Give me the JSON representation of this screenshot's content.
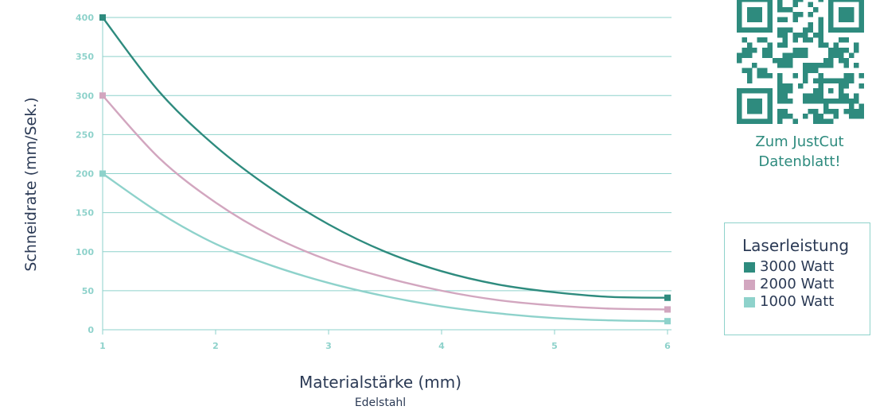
{
  "qr": {
    "caption_line1": "Zum JustCut",
    "caption_line2": "Datenblatt!",
    "caption_color": "#2e8b7e",
    "code_color": "#2e8b7e"
  },
  "legend": {
    "title": "Laserleistung",
    "items": [
      {
        "label": "3000 Watt",
        "color": "#2e8b7e"
      },
      {
        "label": "2000 Watt",
        "color": "#d2a6bf"
      },
      {
        "label": "1000 Watt",
        "color": "#8ed2cb"
      }
    ]
  },
  "chart_data": {
    "type": "line",
    "title": "",
    "xlabel": "Materialstärke (mm)",
    "xlabel_sub": "Edelstahl",
    "ylabel": "Schneidrate (mm/Sek.)",
    "xlim": [
      1,
      6
    ],
    "ylim": [
      0,
      400
    ],
    "x_ticks": [
      "1",
      "2",
      "3",
      "4",
      "5",
      "6"
    ],
    "y_ticks": [
      "0",
      "50",
      "100",
      "150",
      "200",
      "250",
      "300",
      "350",
      "400"
    ],
    "grid": true,
    "legend_position": "right",
    "series": [
      {
        "name": "3000 Watt",
        "color": "#2e8b7e",
        "x": [
          1,
          1.5,
          2,
          2.5,
          3,
          3.5,
          4,
          4.5,
          5,
          5.5,
          6
        ],
        "y": [
          400,
          305,
          235,
          180,
          135,
          100,
          75,
          58,
          48,
          42,
          41
        ]
      },
      {
        "name": "2000 Watt",
        "color": "#d2a6bf",
        "x": [
          1,
          1.5,
          2,
          2.5,
          3,
          3.5,
          4,
          4.5,
          5,
          5.5,
          6
        ],
        "y": [
          300,
          220,
          163,
          120,
          89,
          67,
          50,
          38,
          31,
          27,
          26
        ]
      },
      {
        "name": "1000 Watt",
        "color": "#8ed2cb",
        "x": [
          1,
          1.5,
          2,
          2.5,
          3,
          3.5,
          4,
          4.5,
          5,
          5.5,
          6
        ],
        "y": [
          200,
          150,
          110,
          82,
          60,
          43,
          30,
          21,
          15,
          12,
          11
        ]
      }
    ]
  }
}
